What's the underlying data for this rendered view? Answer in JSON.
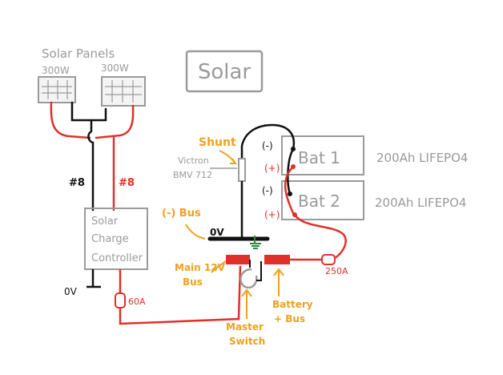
{
  "title": "Solar",
  "solar_panels": {
    "heading": "Solar Panels",
    "panel_left_watts": "300W",
    "panel_right_watts": "300W"
  },
  "wires": {
    "black_gauge": "#8",
    "red_gauge": "#8"
  },
  "controller": {
    "line1": "Solar",
    "line2": "Charge",
    "line3": "Controller"
  },
  "ground_left": "0V",
  "ground_bus": "0V",
  "fuses": {
    "controller_fuse": "60A",
    "battery_fuse": "250A"
  },
  "shunt": {
    "label": "Shunt",
    "monitor_line1": "Victron",
    "monitor_line2": "BMV 712"
  },
  "batteries": [
    {
      "name": "Bat 1",
      "spec": "200Ah LIFEPO4",
      "neg": "(-)",
      "pos": "(+)"
    },
    {
      "name": "Bat 2",
      "spec": "200Ah LIFEPO4",
      "neg": "(-)",
      "pos": "(+)"
    }
  ],
  "labels": {
    "neg_bus": "(-) Bus",
    "main_bus_line1": "Main 12V",
    "main_bus_line2": "Bus",
    "master_line1": "Master",
    "master_line2": "Switch",
    "battery_bus_line1": "Battery",
    "battery_bus_line2": "+ Bus"
  },
  "colors": {
    "red_wire": "#e0302a",
    "black_wire": "#111111",
    "orange_label": "#f0a020",
    "gray_box": "#9a9a9a",
    "green_ground": "#2e8b3a"
  }
}
